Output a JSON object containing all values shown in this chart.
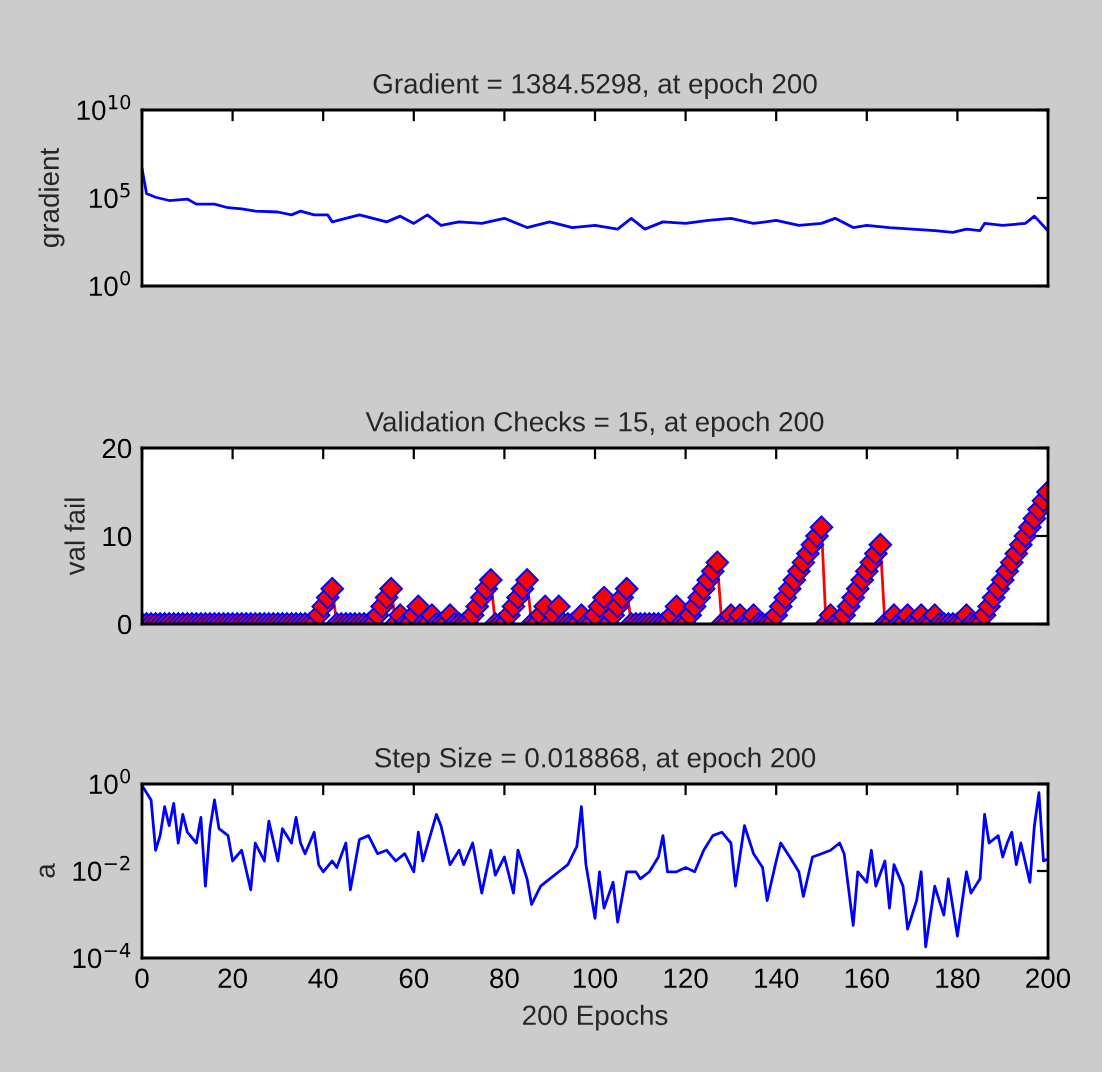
{
  "chart_data": [
    {
      "type": "line",
      "title": "Gradient = 1384.5298, at epoch 200",
      "ylabel": "gradient",
      "log": "y",
      "xlim": [
        0,
        200
      ],
      "xticks": [
        0,
        20,
        40,
        60,
        80,
        100,
        120,
        140,
        160,
        180,
        200
      ],
      "ylim": [
        1,
        10000000000
      ],
      "yticks": [
        {
          "value": 1,
          "label": "10$^{0}$"
        },
        {
          "value": 100000,
          "label": "10$^{5}$"
        },
        {
          "value": 10000000000,
          "label": "10$^{10}$"
        }
      ],
      "tick_labels": "y",
      "grid": false,
      "legend": false,
      "marker": "none",
      "line_style": "solid",
      "series": [
        {
          "color": "#0000ff",
          "x": [
            0,
            1,
            3,
            6,
            10,
            12,
            16,
            19,
            22,
            25,
            30,
            33,
            35,
            38,
            41,
            42,
            45,
            48,
            51,
            54,
            57,
            60,
            63,
            66,
            70,
            75,
            80,
            85,
            90,
            95,
            100,
            105,
            108,
            111,
            115,
            120,
            125,
            130,
            135,
            140,
            145,
            150,
            153,
            157,
            160,
            165,
            170,
            175,
            179,
            182,
            185,
            186,
            190,
            195,
            197,
            200
          ],
          "values": [
            4800000,
            180000,
            110000,
            72000,
            87000,
            45000,
            45000,
            28000,
            24000,
            18000,
            16000,
            11000,
            18000,
            11000,
            11000,
            4400,
            7000,
            11000,
            7000,
            4400,
            9300,
            3600,
            11000,
            2800,
            4400,
            3600,
            7000,
            2100,
            4400,
            2100,
            2800,
            1700,
            7000,
            1700,
            4400,
            3600,
            5300,
            7000,
            3600,
            5300,
            2800,
            3600,
            7000,
            2100,
            2800,
            2100,
            1700,
            1400,
            1100,
            1700,
            1400,
            3600,
            2800,
            3600,
            9300,
            1384.5298
          ]
        }
      ]
    },
    {
      "type": "line",
      "title": "Validation Checks = 15, at epoch 200",
      "ylabel": "val fail",
      "xlim": [
        0,
        200
      ],
      "xticks": [
        0,
        20,
        40,
        60,
        80,
        100,
        120,
        140,
        160,
        180,
        200
      ],
      "ylim": [
        0,
        20
      ],
      "yticks": [
        0,
        10,
        20
      ],
      "tick_labels": "y",
      "grid": false,
      "legend": false,
      "marker": "diamond",
      "line_style": "solid",
      "series": [
        {
          "color": "#ff0000",
          "x": [
            0,
            1,
            2,
            3,
            4,
            5,
            6,
            7,
            8,
            9,
            10,
            11,
            12,
            13,
            14,
            15,
            16,
            17,
            18,
            19,
            20,
            21,
            22,
            23,
            24,
            25,
            26,
            27,
            28,
            29,
            30,
            31,
            32,
            33,
            34,
            35,
            36,
            37,
            38,
            39,
            40,
            41,
            42,
            43,
            44,
            45,
            46,
            47,
            48,
            49,
            50,
            51,
            52,
            53,
            54,
            55,
            56,
            57,
            58,
            59,
            60,
            61,
            62,
            63,
            64,
            65,
            66,
            67,
            68,
            69,
            70,
            71,
            72,
            73,
            74,
            75,
            76,
            77,
            78,
            79,
            80,
            81,
            82,
            83,
            84,
            85,
            86,
            87,
            88,
            89,
            90,
            91,
            92,
            93,
            94,
            95,
            96,
            97,
            98,
            99,
            100,
            101,
            102,
            103,
            104,
            105,
            106,
            107,
            108,
            109,
            110,
            111,
            112,
            113,
            114,
            115,
            116,
            117,
            118,
            119,
            120,
            121,
            122,
            123,
            124,
            125,
            126,
            127,
            128,
            129,
            130,
            131,
            132,
            133,
            134,
            135,
            136,
            137,
            138,
            139,
            140,
            141,
            142,
            143,
            144,
            145,
            146,
            147,
            148,
            149,
            150,
            151,
            152,
            153,
            154,
            155,
            156,
            157,
            158,
            159,
            160,
            161,
            162,
            163,
            164,
            165,
            166,
            167,
            168,
            169,
            170,
            171,
            172,
            173,
            174,
            175,
            176,
            177,
            178,
            179,
            180,
            181,
            182,
            183,
            184,
            185,
            186,
            187,
            188,
            189,
            190,
            191,
            192,
            193,
            194,
            195,
            196,
            197,
            198,
            199,
            200
          ],
          "values": [
            0,
            0,
            0,
            0,
            0,
            0,
            0,
            0,
            0,
            0,
            0,
            0,
            0,
            0,
            0,
            0,
            0,
            0,
            0,
            0,
            0,
            0,
            0,
            0,
            0,
            0,
            0,
            0,
            0,
            0,
            0,
            0,
            0,
            0,
            0,
            0,
            0,
            0,
            0,
            1,
            2,
            3,
            4,
            0,
            0,
            0,
            0,
            0,
            0,
            0,
            0,
            0,
            1,
            2,
            3,
            4,
            0,
            1,
            0,
            0,
            1,
            2,
            0,
            0,
            1,
            0,
            0,
            0,
            1,
            0,
            0,
            0,
            0,
            1,
            2,
            3,
            4,
            5,
            0,
            0,
            0,
            1,
            2,
            3,
            4,
            5,
            0,
            0,
            1,
            2,
            0,
            1,
            2,
            0,
            0,
            0,
            0,
            1,
            0,
            0,
            1,
            2,
            3,
            0,
            1,
            2,
            3,
            4,
            0,
            0,
            0,
            0,
            0,
            0,
            0,
            0,
            0,
            1,
            2,
            0,
            0,
            1,
            2,
            3,
            4,
            5,
            6,
            7,
            0,
            0,
            1,
            0,
            1,
            0,
            0,
            1,
            0,
            0,
            0,
            0,
            1,
            2,
            3,
            4,
            5,
            6,
            7,
            8,
            9,
            10,
            11,
            0,
            1,
            0,
            0,
            1,
            2,
            3,
            4,
            5,
            6,
            7,
            8,
            9,
            0,
            0,
            1,
            0,
            0,
            1,
            0,
            0,
            1,
            0,
            0,
            1,
            0,
            0,
            0,
            0,
            0,
            0,
            1,
            0,
            0,
            0,
            1,
            2,
            3,
            4,
            5,
            6,
            7,
            8,
            9,
            10,
            11,
            12,
            13,
            14,
            15
          ]
        }
      ]
    },
    {
      "type": "line",
      "title": "Step Size = 0.018868, at epoch 200",
      "ylabel": "a",
      "xlabel": "200 Epochs",
      "log": "y",
      "xlim": [
        0,
        200
      ],
      "xticks": [
        0,
        20,
        40,
        60,
        80,
        100,
        120,
        140,
        160,
        180,
        200
      ],
      "ylim": [
        0.0001,
        1
      ],
      "yticks": [
        {
          "value": 0.0001,
          "label": "10$^{−4}$"
        },
        {
          "value": 0.01,
          "label": "10$^{−2}$"
        },
        {
          "value": 1,
          "label": "10$^{0}$"
        }
      ],
      "grid": false,
      "legend": false,
      "marker": "none",
      "line_style": "solid",
      "series": [
        {
          "color": "#0000ff",
          "x": [
            0,
            2,
            3,
            4,
            5,
            6,
            7,
            8,
            9,
            10,
            12,
            13,
            14,
            15,
            16,
            17,
            19,
            20,
            22,
            24,
            25,
            27,
            28,
            30,
            31,
            33,
            34,
            35,
            36,
            38,
            39,
            40,
            42,
            43,
            45,
            46,
            48,
            50,
            52,
            54,
            56,
            58,
            60,
            61,
            62,
            65,
            66,
            68,
            70,
            71,
            73,
            75,
            77,
            78,
            80,
            82,
            83,
            85,
            86,
            88,
            90,
            92,
            94,
            96,
            97,
            98,
            100,
            101,
            102,
            104,
            105,
            107,
            109,
            110,
            112,
            114,
            115,
            116,
            118,
            120,
            122,
            124,
            126,
            128,
            130,
            131,
            133,
            135,
            137,
            138,
            140,
            141,
            143,
            145,
            146,
            148,
            150,
            152,
            154,
            155,
            157,
            158,
            160,
            161,
            162,
            164,
            165,
            166,
            168,
            169,
            171,
            172,
            173,
            175,
            177,
            178,
            180,
            182,
            183,
            185,
            186,
            187,
            189,
            190,
            191,
            192,
            193,
            194,
            196,
            197,
            198,
            199,
            200
          ],
          "values": [
            0.93,
            0.43,
            0.03,
            0.065,
            0.3,
            0.11,
            0.36,
            0.044,
            0.2,
            0.078,
            0.044,
            0.17,
            0.0045,
            0.094,
            0.43,
            0.094,
            0.065,
            0.017,
            0.03,
            0.0037,
            0.044,
            0.017,
            0.14,
            0.017,
            0.094,
            0.044,
            0.17,
            0.044,
            0.025,
            0.078,
            0.014,
            0.0096,
            0.017,
            0.012,
            0.044,
            0.0037,
            0.053,
            0.065,
            0.025,
            0.03,
            0.017,
            0.025,
            0.0096,
            0.078,
            0.017,
            0.2,
            0.11,
            0.014,
            0.03,
            0.014,
            0.044,
            0.0031,
            0.03,
            0.008,
            0.021,
            0.0031,
            0.03,
            0.0066,
            0.0017,
            0.0045,
            0.0066,
            0.0096,
            0.014,
            0.037,
            0.3,
            0.014,
            0.00082,
            0.0096,
            0.0014,
            0.0055,
            0.00067,
            0.0096,
            0.0096,
            0.0066,
            0.0096,
            0.021,
            0.065,
            0.0096,
            0.0096,
            0.012,
            0.0096,
            0.03,
            0.065,
            0.078,
            0.044,
            0.0045,
            0.11,
            0.025,
            0.012,
            0.0021,
            0.017,
            0.044,
            0.021,
            0.0096,
            0.0026,
            0.021,
            0.025,
            0.03,
            0.044,
            0.025,
            0.00056,
            0.0096,
            0.0055,
            0.03,
            0.0045,
            0.017,
            0.0014,
            0.014,
            0.0045,
            0.00046,
            0.0021,
            0.0096,
            0.00018,
            0.0045,
            0.00097,
            0.0066,
            0.00032,
            0.0096,
            0.0031,
            0.0066,
            0.2,
            0.044,
            0.065,
            0.021,
            0.044,
            0.078,
            0.014,
            0.044,
            0.0055,
            0.11,
            0.63,
            0.017,
            0.018868
          ]
        }
      ]
    }
  ]
}
